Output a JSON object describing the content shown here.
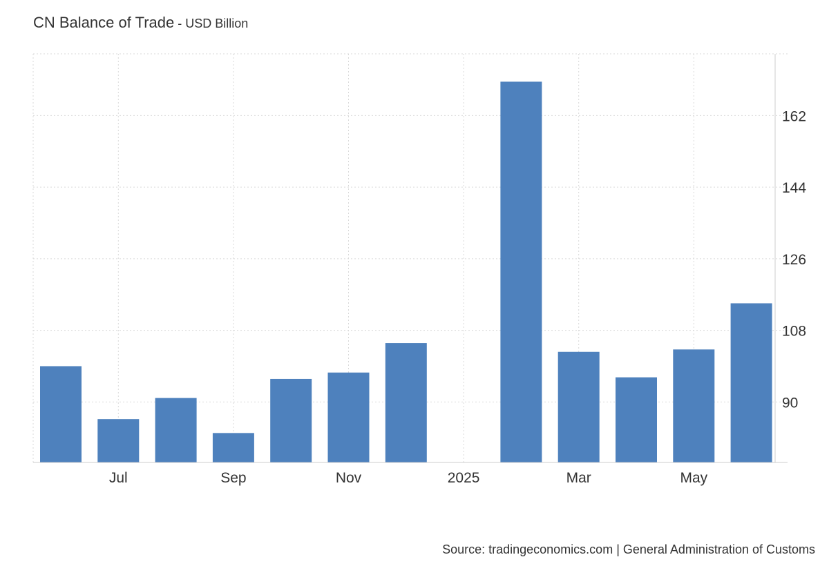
{
  "header": {
    "title": "CN Balance of Trade",
    "subtitle": " - USD Billion"
  },
  "footer": {
    "source": "Source: tradingeconomics.com | General Administration of Customs"
  },
  "colors": {
    "bar": "#4e81bd",
    "grid": "#d9d9d9",
    "text": "#333333"
  },
  "chart_data": {
    "type": "bar",
    "categories": [
      "2024-06",
      "2024-07",
      "2024-08",
      "2024-09",
      "2024-10",
      "2024-11",
      "2024-12",
      "2025-01",
      "2025-02",
      "2025-03",
      "2025-04",
      "2025-05",
      "2025-06"
    ],
    "values": [
      99.0,
      85.7,
      91.0,
      82.2,
      95.8,
      97.4,
      104.8,
      null,
      170.5,
      102.6,
      96.2,
      103.2,
      114.8
    ],
    "x_tick_labels": [
      "Jul",
      "Sep",
      "Nov",
      "2025",
      "Mar",
      "May"
    ],
    "x_tick_positions": [
      "2024-07",
      "2024-09",
      "2024-11",
      "2025-01",
      "2025-03",
      "2025-05"
    ],
    "y_ticks": [
      90,
      108,
      126,
      144,
      162
    ],
    "ylim": [
      74.8,
      177.5
    ],
    "y_axis_side": "right",
    "grid": true,
    "xlabel": "",
    "ylabel": ""
  }
}
